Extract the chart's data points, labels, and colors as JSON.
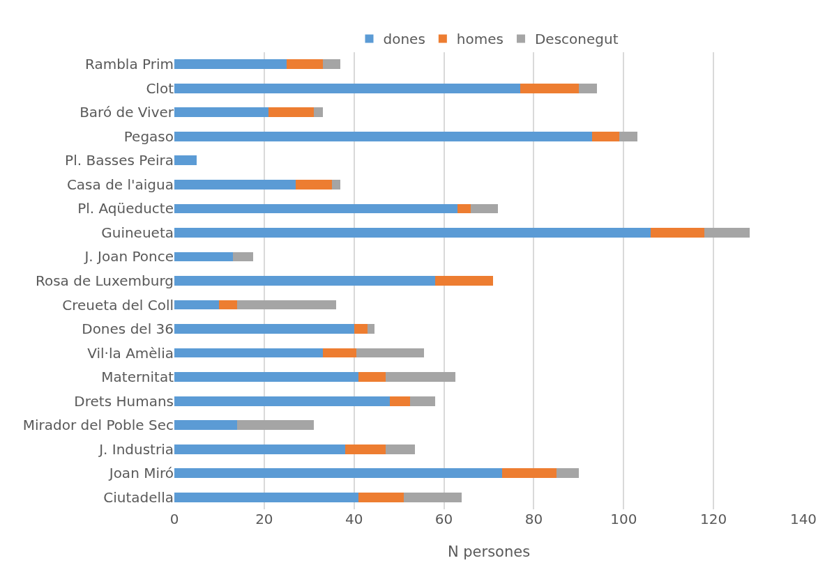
{
  "chart_data": {
    "type": "bar",
    "orientation": "horizontal",
    "stacked": true,
    "categories": [
      "Rambla Prim",
      "Clot",
      "Baró de Viver",
      "Pegaso",
      "Pl. Basses Peira",
      "Casa de l'aigua",
      "Pl. Aqüeducte",
      "Guineueta",
      "J. Joan Ponce",
      "Rosa de Luxemburg",
      "Creueta del Coll",
      "Dones del 36",
      "Vil·la Amèlia",
      "Maternitat",
      "Drets Humans",
      "Mirador del Poble Sec",
      "J. Industria",
      "Joan Miró",
      "Ciutadella"
    ],
    "series": [
      {
        "name": "dones",
        "color": "#5b9bd5",
        "values": [
          25,
          77,
          21,
          93,
          5,
          27,
          63,
          106,
          13,
          58,
          10,
          40,
          33,
          41,
          48,
          14,
          38,
          73,
          41
        ]
      },
      {
        "name": "homes",
        "color": "#ed7d31",
        "values": [
          8,
          13,
          10,
          6,
          0,
          8,
          3,
          12,
          0,
          13,
          4,
          3,
          7.5,
          6,
          4.5,
          0,
          9,
          12,
          10
        ]
      },
      {
        "name": "Desconegut",
        "color": "#a5a5a5",
        "values": [
          4,
          4,
          2,
          4,
          0,
          2,
          6,
          10,
          4.5,
          0,
          22,
          1.5,
          15,
          15.5,
          5.5,
          17,
          6.5,
          5,
          13
        ]
      }
    ],
    "xlabel": "N persones",
    "xlim": [
      0,
      140
    ],
    "xticks": [
      0,
      20,
      40,
      60,
      80,
      100,
      120,
      140
    ],
    "grid": "x",
    "legend": "top"
  }
}
